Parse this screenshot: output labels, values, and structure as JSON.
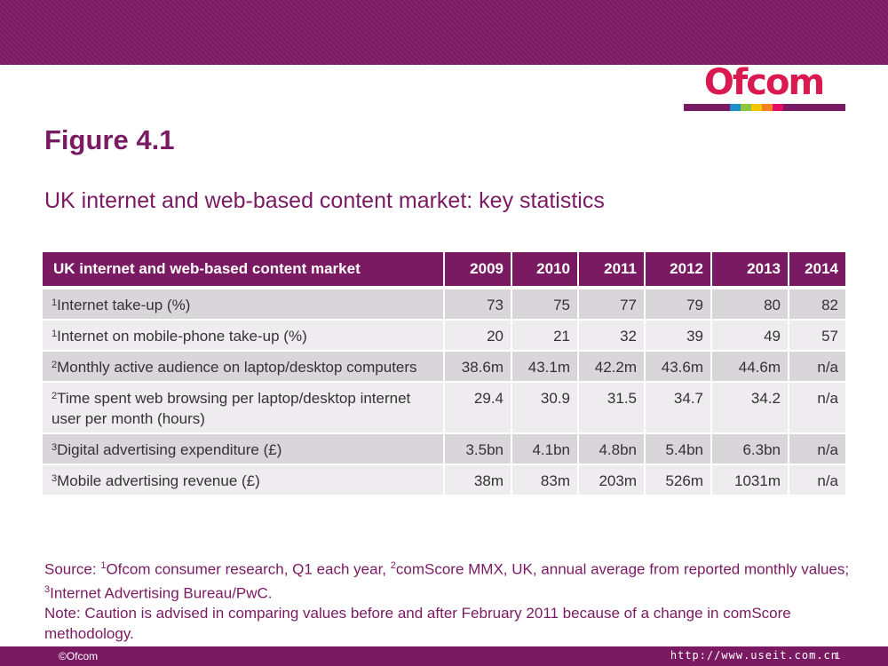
{
  "logo": {
    "text": "Ofcom",
    "colors": [
      "#7a1a63",
      "#7a1a63",
      "#1e8fc9",
      "#8dc63f",
      "#f7c600",
      "#f58220",
      "#e40e63",
      "#7a1a63"
    ]
  },
  "figure": {
    "title": "Figure 4.1",
    "subtitle": "UK internet and web-based content market: key statistics"
  },
  "table": {
    "header": [
      "UK internet and web-based content market",
      "2009",
      "2010",
      "2011",
      "2012",
      "2013",
      "2014"
    ],
    "rows": [
      {
        "ref": "1",
        "label": "Internet take-up (%)",
        "values": [
          "73",
          "75",
          "77",
          "79",
          "80",
          "82"
        ]
      },
      {
        "ref": "1",
        "label": "Internet on mobile-phone take-up (%)",
        "values": [
          "20",
          "21",
          "32",
          "39",
          "49",
          "57"
        ]
      },
      {
        "ref": "2",
        "label": "Monthly active audience on laptop/desktop computers",
        "values": [
          "38.6m",
          "43.1m",
          "42.2m",
          "43.6m",
          "44.6m",
          "n/a"
        ]
      },
      {
        "ref": "2",
        "label": "Time spent web browsing per laptop/desktop internet user per month (hours)",
        "values": [
          "29.4",
          "30.9",
          "31.5",
          "34.7",
          "34.2",
          "n/a"
        ]
      },
      {
        "ref": "3",
        "label": "Digital advertising expenditure (£)",
        "values": [
          "3.5bn",
          "4.1bn",
          "4.8bn",
          "5.4bn",
          "6.3bn",
          "n/a"
        ]
      },
      {
        "ref": "3",
        "label": "Mobile advertising revenue (£)",
        "values": [
          "38m",
          "83m",
          "203m",
          "526m",
          "1031m",
          "n/a"
        ]
      }
    ]
  },
  "source": {
    "prefix": "Source: ",
    "ref1": "1",
    "text1": "Ofcom consumer research, Q1 each year, ",
    "ref2": "2",
    "text2": "comScore MMX, UK, annual average from reported monthly values; ",
    "ref3": "3",
    "text3": "Internet Advertising Bureau/PwC.",
    "note": "Note: Caution is advised in comparing values before and after February 2011 because of a change in comScore methodology."
  },
  "footer": {
    "copyright": "©Ofcom",
    "watermark": "http://www.useit.com.cn",
    "page_number": "1"
  }
}
